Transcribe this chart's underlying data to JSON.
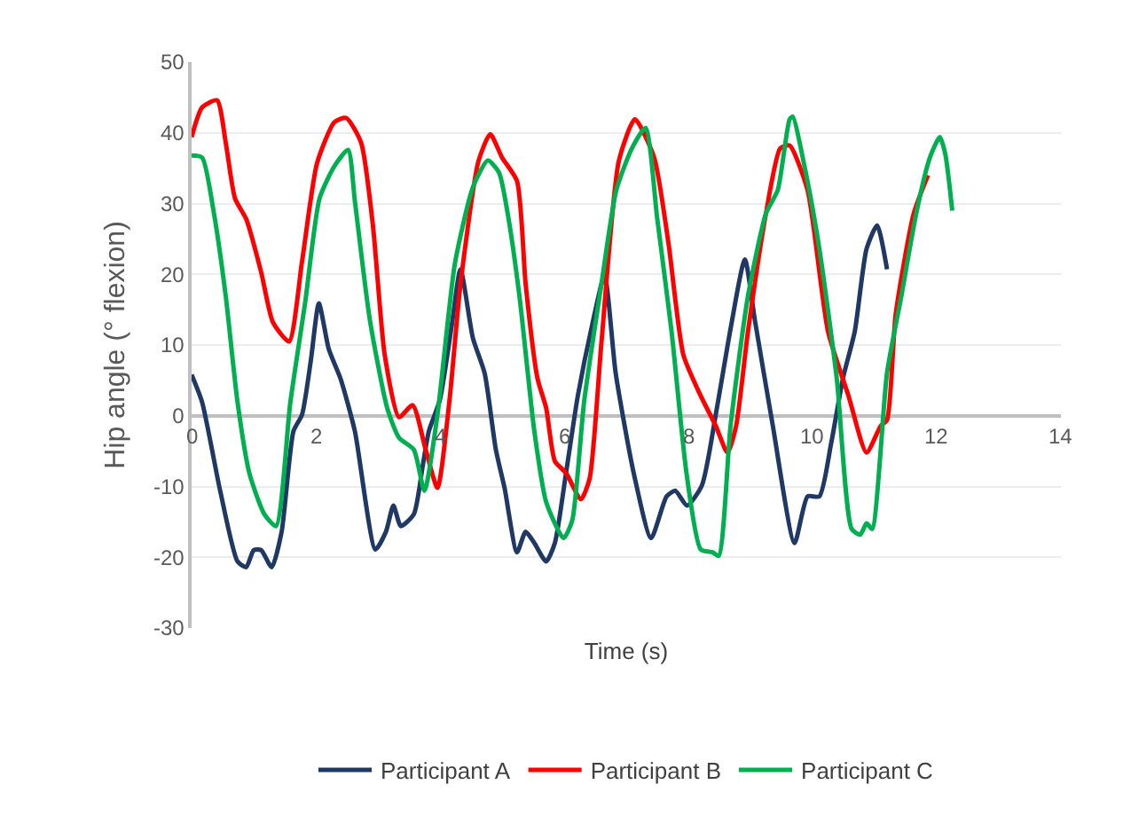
{
  "chart_data": {
    "type": "line",
    "xlabel": "Time (s)",
    "ylabel": "Hip angle (° flexion)",
    "xlim": [
      0,
      14
    ],
    "xticks": [
      0,
      2,
      4,
      6,
      8,
      10,
      12,
      14
    ],
    "ylim": [
      -30,
      50
    ],
    "yticks": [
      -30,
      -20,
      -10,
      0,
      10,
      20,
      30,
      40,
      50
    ],
    "grid": "y",
    "legend": "bottom",
    "marker": "none",
    "line_style": "solid",
    "series": [
      {
        "name": "Participant A",
        "color": "#1f3864",
        "x": [
          0,
          0.17,
          0.46,
          0.74,
          0.88,
          1.0,
          1.12,
          1.29,
          1.45,
          1.64,
          1.78,
          1.92,
          2.05,
          2.21,
          2.4,
          2.63,
          2.96,
          3.13,
          3.25,
          3.37,
          3.58,
          3.72,
          3.82,
          4.0,
          4.19,
          4.33,
          4.53,
          4.72,
          4.9,
          5.04,
          5.24,
          5.38,
          5.52,
          5.71,
          5.85,
          6.03,
          6.22,
          6.45,
          6.65,
          6.83,
          7.12,
          7.4,
          7.65,
          7.79,
          7.98,
          8.22,
          8.46,
          8.69,
          8.91,
          9.07,
          9.36,
          9.71,
          9.92,
          10.11,
          10.3,
          10.49,
          10.68,
          10.87,
          11.04,
          11.2
        ],
        "values": [
          5.8,
          1.9,
          -10.6,
          -20.6,
          -21.4,
          -19,
          -19,
          -21.4,
          -16.4,
          -2.2,
          0.2,
          7.8,
          15.9,
          9.4,
          5.2,
          -2.2,
          -18.9,
          -16.4,
          -12.7,
          -15.6,
          -13.9,
          -7.2,
          -2.2,
          2.3,
          12.8,
          20.7,
          11,
          6,
          -4.8,
          -10.2,
          -19.3,
          -16.4,
          -18,
          -20.6,
          -18,
          -8.1,
          2.8,
          12.8,
          19.8,
          6,
          -8.1,
          -17.3,
          -11.4,
          -10.6,
          -12.7,
          -9.8,
          1.1,
          12.8,
          22.1,
          13.6,
          -1.4,
          -18,
          -11.4,
          -11.4,
          -3.9,
          5.3,
          11.9,
          23.6,
          26.9,
          20.7
        ]
      },
      {
        "name": "Participant B",
        "color": "#ff0000",
        "x": [
          0,
          0.17,
          0.41,
          0.55,
          0.7,
          0.88,
          1.12,
          1.31,
          1.57,
          1.78,
          2.02,
          2.3,
          2.49,
          2.73,
          2.92,
          3.11,
          3.34,
          3.56,
          3.77,
          3.96,
          4.15,
          4.33,
          4.62,
          4.81,
          5.0,
          5.24,
          5.38,
          5.57,
          5.71,
          5.85,
          6.03,
          6.27,
          6.41,
          6.6,
          6.88,
          7.14,
          7.45,
          7.68,
          7.92,
          8.2,
          8.44,
          8.63,
          8.77,
          8.96,
          9.25,
          9.48,
          9.63,
          9.92,
          10.25,
          10.58,
          10.87,
          11.1,
          11.2,
          11.34,
          11.63,
          11.86
        ],
        "values": [
          39.4,
          43.6,
          44.6,
          38.6,
          30.7,
          27.8,
          20.3,
          13.2,
          10.5,
          21.9,
          35.7,
          41.5,
          42.1,
          38.6,
          26.9,
          8.6,
          -0.2,
          1.5,
          -4.8,
          -10.2,
          1.9,
          18.6,
          36,
          39.8,
          36.5,
          33.2,
          18.6,
          5.3,
          1.1,
          -6.4,
          -8.1,
          -11.8,
          -8.9,
          10.3,
          36,
          41.9,
          36.5,
          24.4,
          8.6,
          2.8,
          -1.4,
          -5.2,
          -1.4,
          11.9,
          28.6,
          37.8,
          38.2,
          31.9,
          11.9,
          2.8,
          -5.2,
          -1.4,
          -0.6,
          14.4,
          28.6,
          34
        ]
      },
      {
        "name": "Participant C",
        "color": "#00b050",
        "x": [
          0,
          0.17,
          0.36,
          0.55,
          0.74,
          0.93,
          1.17,
          1.36,
          1.59,
          1.83,
          2.06,
          2.3,
          2.52,
          2.63,
          2.87,
          3.15,
          3.34,
          3.58,
          3.75,
          3.96,
          4.24,
          4.53,
          4.77,
          4.95,
          5.09,
          5.28,
          5.52,
          5.71,
          5.99,
          6.13,
          6.32,
          6.6,
          6.84,
          7.09,
          7.31,
          7.5,
          7.73,
          7.97,
          8.2,
          8.39,
          8.49,
          8.68,
          8.96,
          9.25,
          9.44,
          9.63,
          9.68,
          9.87,
          10.11,
          10.39,
          10.63,
          10.77,
          10.87,
          10.96,
          11.2,
          11.43,
          11.67,
          11.89,
          12.05,
          12.14,
          12.25
        ],
        "values": [
          36.8,
          36.5,
          28.6,
          16.9,
          1.9,
          -8.1,
          -13.9,
          -15.6,
          1.9,
          16.1,
          30.7,
          35.3,
          37.6,
          30.3,
          13.6,
          1.1,
          -3.1,
          -4.8,
          -10.6,
          0.2,
          21.5,
          32.3,
          36.1,
          34.4,
          28.6,
          16.9,
          -2.2,
          -12.2,
          -17.3,
          -14.8,
          1.9,
          18.6,
          31.9,
          37.8,
          40.7,
          27.8,
          11.9,
          -8.1,
          -18.9,
          -19.3,
          -19.8,
          -1.4,
          16.9,
          28.6,
          31.9,
          41.9,
          42.3,
          35.3,
          23.6,
          5.3,
          -16,
          -16.8,
          -15.2,
          -16,
          6.1,
          16.9,
          28.6,
          36.5,
          39.4,
          36.9,
          29
        ]
      }
    ]
  }
}
